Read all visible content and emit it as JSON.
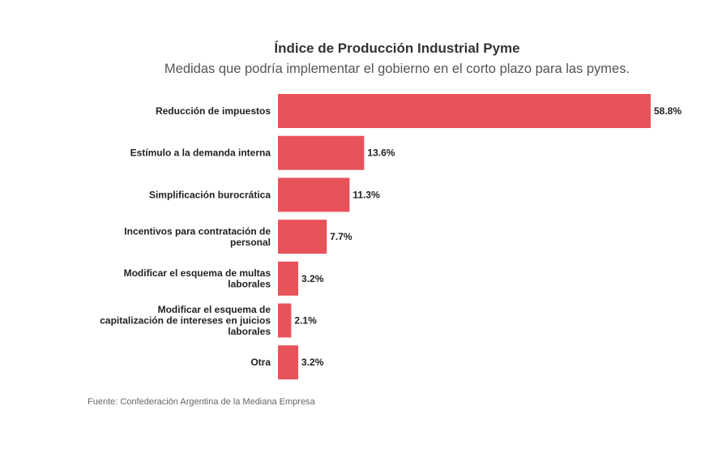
{
  "chart_data": {
    "type": "bar",
    "orientation": "horizontal",
    "title": "Índice de Producción Industrial Pyme",
    "subtitle": "Medidas que podría implementar el gobierno en el corto plazo para las pymes.",
    "categories": [
      [
        "Reducción de impuestos"
      ],
      [
        "Estímulo a la demanda interna"
      ],
      [
        "Simplificación burocrática"
      ],
      [
        "Incentivos para contratación de",
        "personal"
      ],
      [
        "Modificar el esquema de multas",
        "laborales"
      ],
      [
        "Modificar el esquema de",
        "capitalización de intereses en juicios",
        "laborales"
      ],
      [
        "Otra"
      ]
    ],
    "values": [
      58.8,
      13.6,
      11.3,
      7.7,
      3.2,
      2.1,
      3.2
    ],
    "value_labels": [
      "58.8%",
      "13.6%",
      "11.3%",
      "7.7%",
      "3.2%",
      "2.1%",
      "3.2%"
    ],
    "xlim": [
      0,
      58.8
    ],
    "color": "#e8535a",
    "source": "Fuente: Confederación Argentina de la Mediana Empresa"
  }
}
